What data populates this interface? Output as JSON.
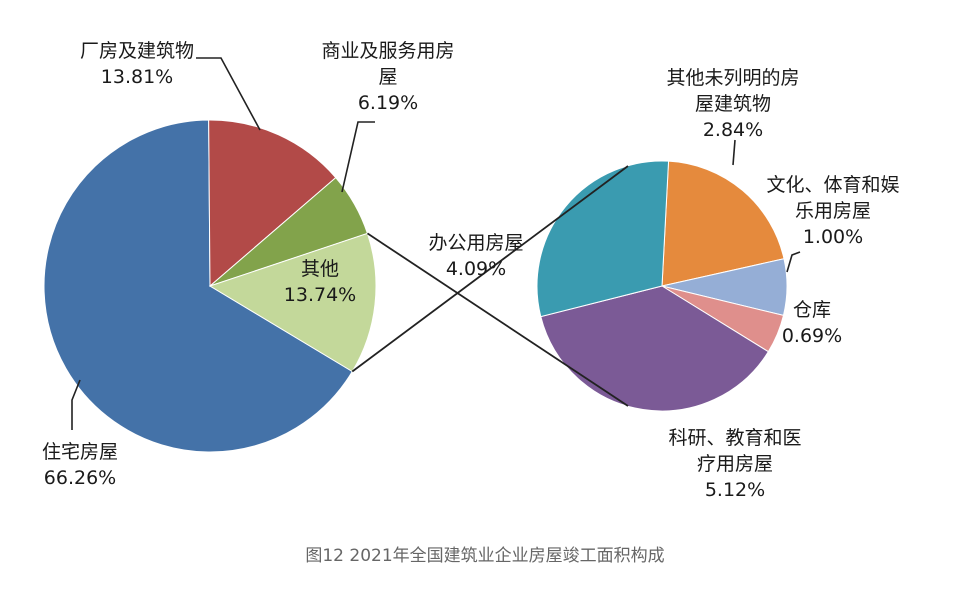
{
  "chart_data": [
    {
      "type": "pie",
      "slices": [
        {
          "label_lines": [
            "住宅房屋"
          ],
          "value_text": "66.26%",
          "value": 66.26,
          "color": "#4472a8"
        },
        {
          "label_lines": [
            "厂房及建筑物"
          ],
          "value_text": "13.81%",
          "value": 13.81,
          "color": "#b24a48"
        },
        {
          "label_lines": [
            "商业及服务用房",
            "屋"
          ],
          "value_text": "6.19%",
          "value": 6.19,
          "color": "#82a34b"
        },
        {
          "label_lines": [
            "其他"
          ],
          "value_text": "13.74%",
          "value": 13.74,
          "color": "#c3d89a"
        }
      ]
    },
    {
      "type": "pie",
      "slices": [
        {
          "label_lines": [
            "其他未列明的房",
            "屋建筑物"
          ],
          "value_text": "2.84%",
          "value": 2.84,
          "color": "#e58a3d"
        },
        {
          "label_lines": [
            "文化、体育和娱",
            "乐用房屋"
          ],
          "value_text": "1.00%",
          "value": 1.0,
          "color": "#95aed6"
        },
        {
          "label_lines": [
            "仓库"
          ],
          "value_text": "0.69%",
          "value": 0.69,
          "color": "#df8f8c"
        },
        {
          "label_lines": [
            "科研、教育和医",
            "疗用房屋"
          ],
          "value_text": "5.12%",
          "value": 5.12,
          "color": "#7b5a96"
        },
        {
          "label_lines": [
            "办公用房屋"
          ],
          "value_text": "4.09%",
          "value": 4.09,
          "color": "#3a9bb0"
        }
      ]
    }
  ],
  "caption": "图12 2021年全国建筑业企业房屋竣工面积构成"
}
